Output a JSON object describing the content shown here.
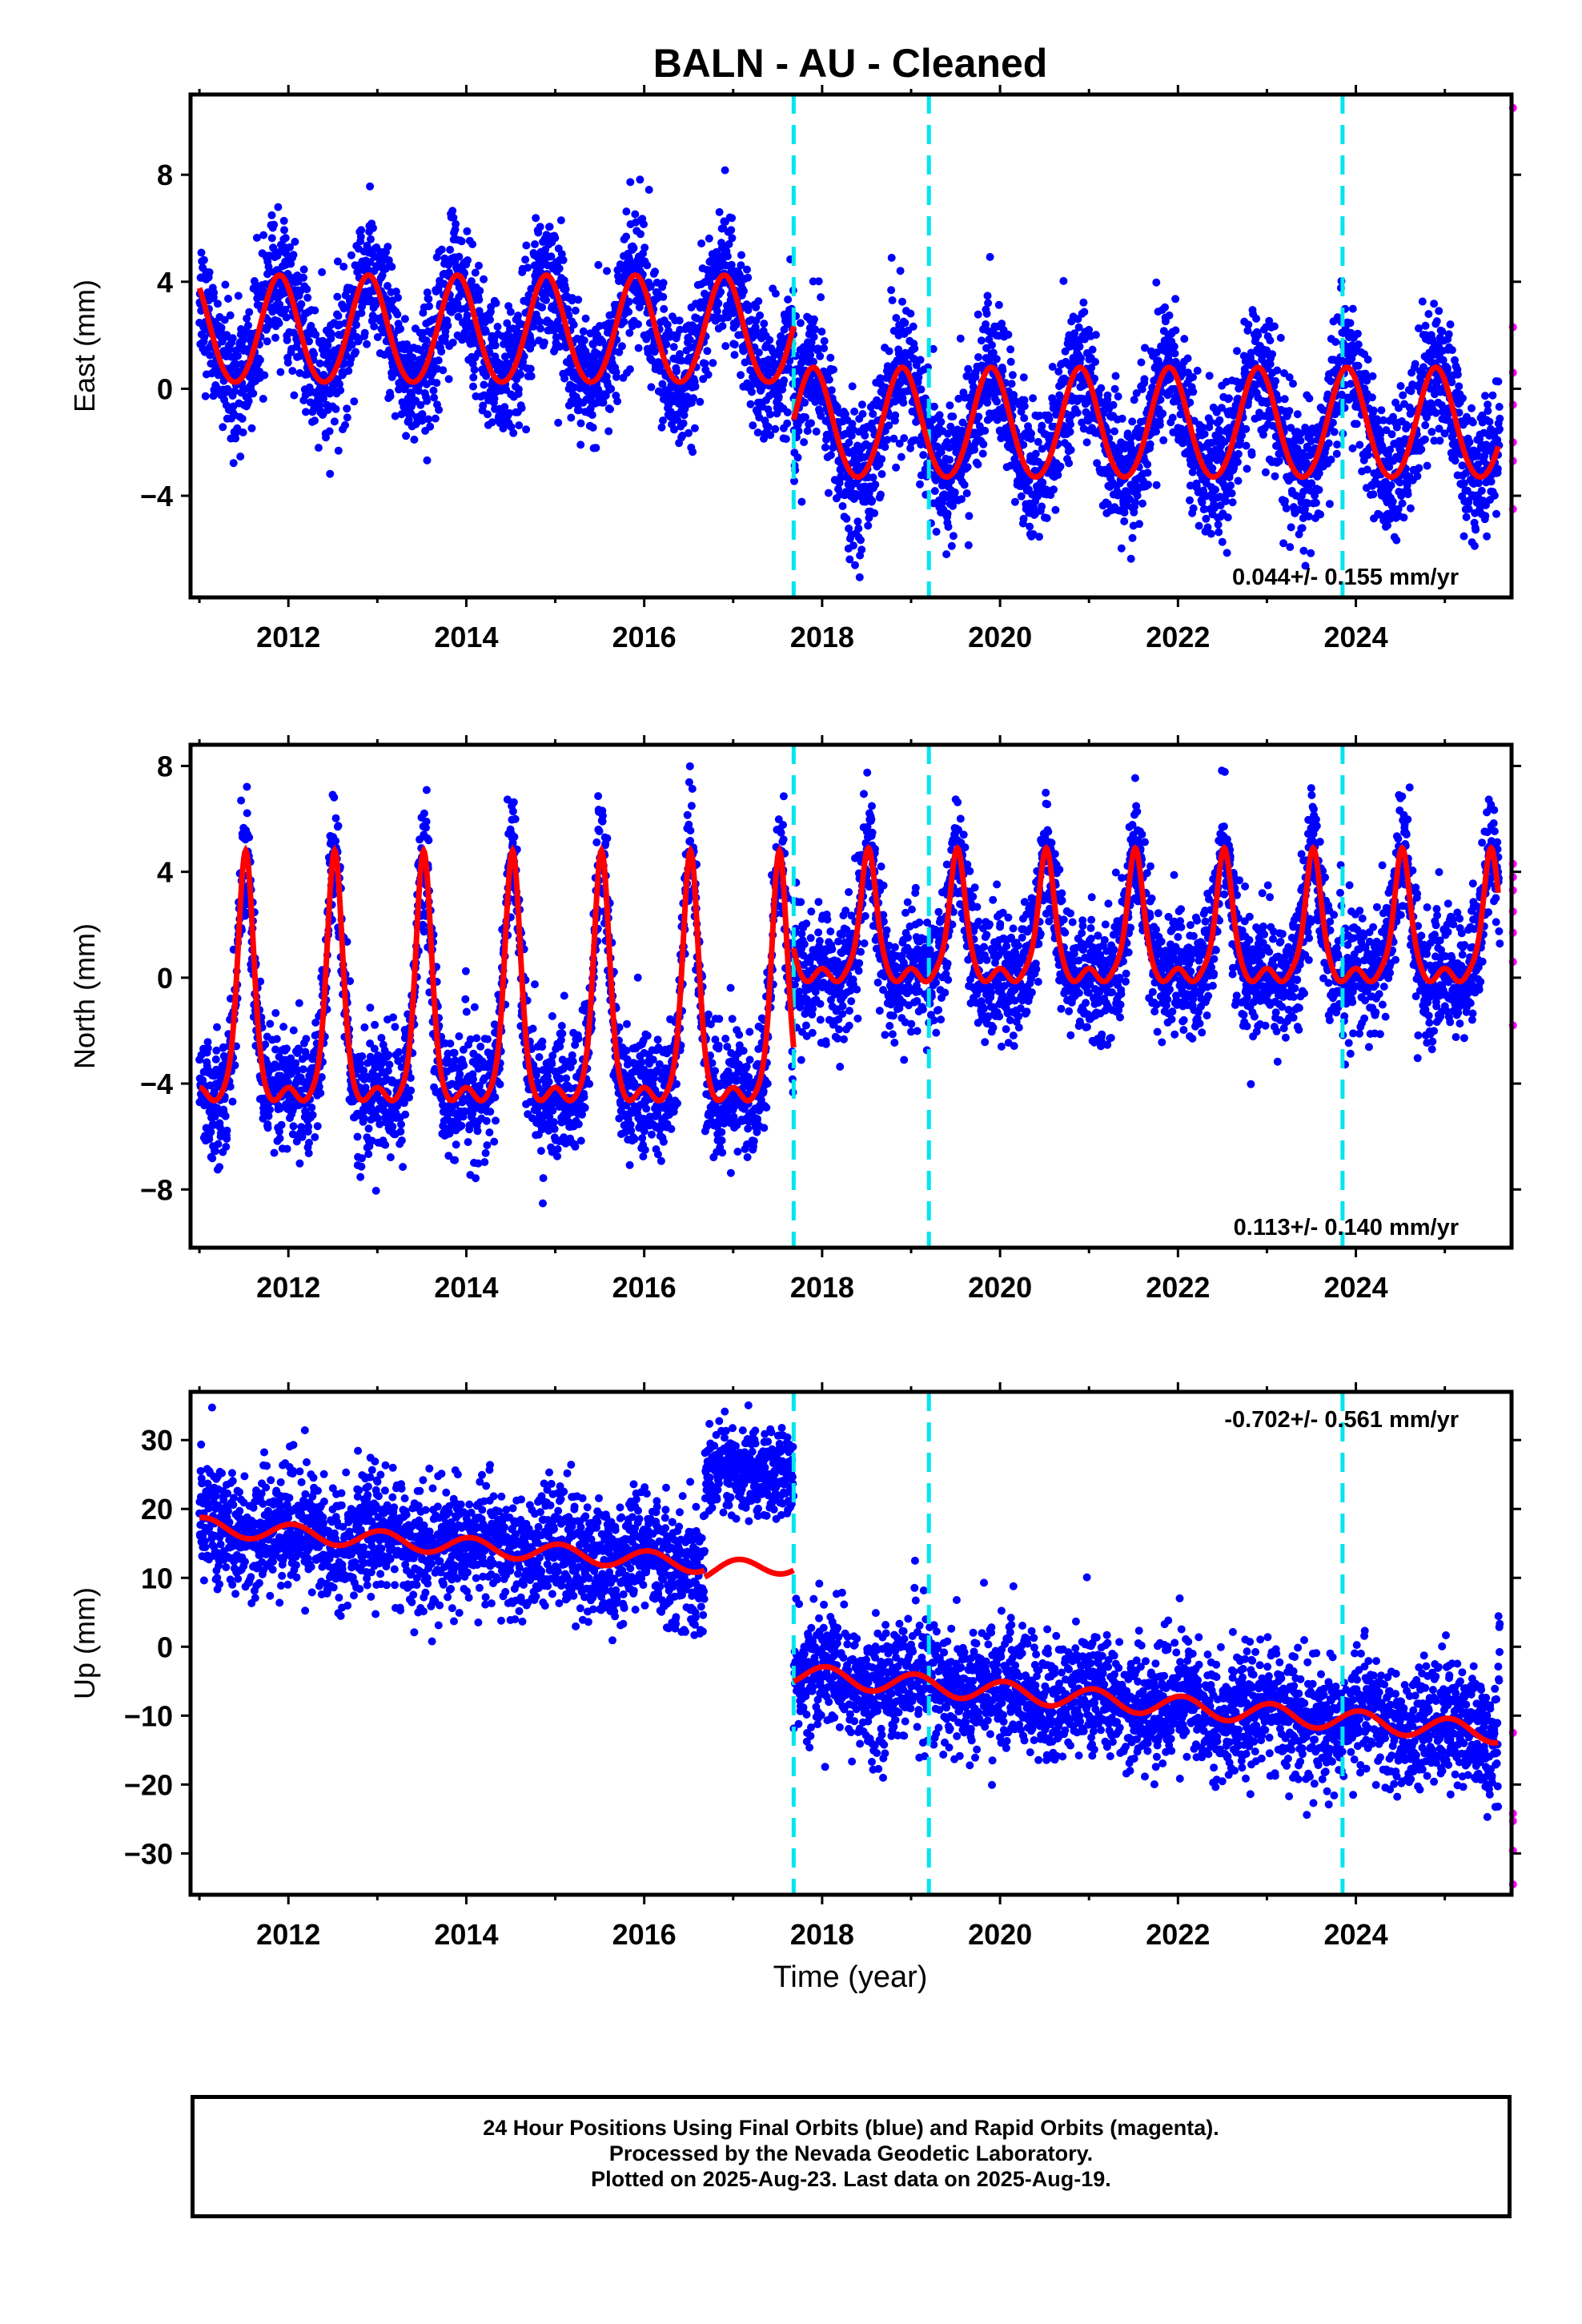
{
  "title": "BALN  - AU - Cleaned",
  "xlabel": "Time (year)",
  "colors": {
    "final_points": "#0000ff",
    "rapid_points": "#ff00ff",
    "model": "#ff0000",
    "event_lines": "#00e5ee",
    "axes": "#000000"
  },
  "footer": {
    "line1": "24 Hour Positions Using Final Orbits (blue) and Rapid Orbits (magenta).",
    "line2": "Processed by the Nevada Geodetic Laboratory.",
    "line3": "Plotted on 2025-Aug-23. Last data on 2025-Aug-19."
  },
  "chart_data": [
    {
      "type": "scatter",
      "ylabel": "East (mm)",
      "xlim": [
        2010.9,
        2025.75
      ],
      "ylim": [
        -7.8,
        11
      ],
      "xticks": [
        2012,
        2014,
        2016,
        2018,
        2020,
        2022,
        2024
      ],
      "yticks": [
        -4,
        0,
        4,
        8
      ],
      "rate_text": "0.044+/- 0.155 mm/yr",
      "event_lines_x": [
        2017.68,
        2019.2,
        2023.85
      ],
      "series": [
        {
          "style": "points-blue",
          "x_range": [
            2011.0,
            2025.62
          ],
          "approx_mean_before_2017_68": 2.1,
          "approx_mean_after_2017_68": -1.4,
          "seasonal_amplitude_mm": 2.0,
          "scatter_mm": 1.3
        },
        {
          "style": "points-magenta",
          "x": [
            2025.64,
            2025.64,
            2025.64,
            2025.64,
            2025.64,
            2025.64,
            2025.64
          ],
          "y": [
            10.5,
            2.3,
            0.6,
            -0.6,
            -2.0,
            -2.7,
            -4.5
          ]
        },
        {
          "style": "model-red",
          "segments": [
            {
              "x_range": [
                2011.0,
                2017.68
              ],
              "offset": 2.1,
              "amplitude": 2.0,
              "peak_phase": 0.9,
              "slope": 0.0
            },
            {
              "x_range": [
                2017.68,
                2025.6
              ],
              "offset": -1.4,
              "amplitude": 2.05,
              "peak_phase": 0.9,
              "slope": 0.0
            }
          ]
        }
      ]
    },
    {
      "type": "scatter",
      "ylabel": "North (mm)",
      "xlim": [
        2010.9,
        2025.75
      ],
      "ylim": [
        -10.2,
        8.8
      ],
      "xticks": [
        2012,
        2014,
        2016,
        2018,
        2020,
        2022,
        2024
      ],
      "yticks": [
        -8,
        -4,
        0,
        4,
        8
      ],
      "rate_text": "0.113+/- 0.140 mm/yr",
      "event_lines_x": [
        2017.68,
        2019.2,
        2023.85
      ],
      "series": [
        {
          "style": "points-blue",
          "x_range": [
            2011.0,
            2025.62
          ],
          "approx_base_before_2017_68": -4.3,
          "approx_base_after_2017_68": 0.2,
          "seasonal_peak_mm": 4.8,
          "scatter_mm": 1.2
        },
        {
          "style": "points-magenta",
          "x": [
            2025.64,
            2025.64,
            2025.64,
            2025.64,
            2025.64,
            2025.64,
            2025.64
          ],
          "y": [
            4.3,
            3.3,
            2.5,
            1.7,
            0.6,
            -1.8,
            3.8
          ]
        },
        {
          "style": "model-red",
          "segments": [
            {
              "x_range": [
                2011.0,
                2017.68
              ],
              "base": -4.4,
              "peak": 4.8,
              "peak_phase": 0.52,
              "slope": 0.0
            },
            {
              "x_range": [
                2017.68,
                2025.6
              ],
              "base": 0.1,
              "peak": 4.9,
              "peak_phase": 0.52,
              "slope": 0.0
            }
          ]
        }
      ]
    },
    {
      "type": "scatter",
      "ylabel": "Up (mm)",
      "xlim": [
        2010.9,
        2025.75
      ],
      "ylim": [
        -36,
        37
      ],
      "xticks": [
        2012,
        2014,
        2016,
        2018,
        2020,
        2022,
        2024
      ],
      "yticks": [
        -30,
        -20,
        -10,
        0,
        10,
        20,
        30
      ],
      "rate_text": "-0.702+/- 0.561 mm/yr",
      "event_lines_x": [
        2017.68,
        2019.2,
        2023.85
      ],
      "series": [
        {
          "style": "points-blue",
          "x_range": [
            2011.0,
            2025.62
          ],
          "approx_mean_2011": 16,
          "approx_mean_2016_5": 11,
          "approx_mean_2016_7_to_2017_68": 25,
          "approx_mean_2018": -4,
          "approx_mean_2025_5": -12,
          "scatter_mm": 4.5
        },
        {
          "style": "points-magenta",
          "x": [
            2025.64,
            2025.64,
            2025.64,
            2025.64,
            2025.64
          ],
          "y": [
            -12.5,
            -24.2,
            -25.3,
            -29.6,
            -34.5
          ]
        },
        {
          "style": "model-red",
          "segments": [
            {
              "x_range": [
                2011.0,
                2016.68
              ],
              "start": 17.5,
              "end": 12.0,
              "amplitude": 1.3
            },
            {
              "x_range": [
                2016.68,
                2017.68
              ],
              "start": 11.0,
              "end": 12.0,
              "amplitude": 1.3
            },
            {
              "x_range": [
                2017.68,
                2025.6
              ],
              "start": -4.0,
              "end": -12.5,
              "amplitude": 1.5
            }
          ]
        }
      ]
    }
  ]
}
